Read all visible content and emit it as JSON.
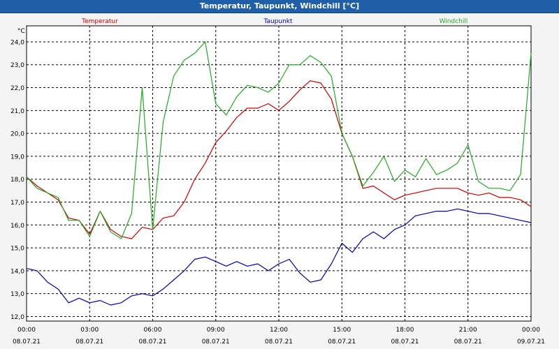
{
  "window": {
    "title": "Temperatur, Taupunkt, Windchill [°C]"
  },
  "chart_data": {
    "type": "line",
    "title": "Temperatur, Taupunkt, Windchill [°C]",
    "ylabel": "°C",
    "ylim": [
      11.8,
      24.7
    ],
    "yticks": [
      "12,0",
      "13,0",
      "14,0",
      "15,0",
      "16,0",
      "17,0",
      "18,0",
      "19,0",
      "20,0",
      "21,0",
      "22,0",
      "23,0",
      "24,0"
    ],
    "xticks": [
      {
        "time": "00:00",
        "date": "08.07.21"
      },
      {
        "time": "03:00",
        "date": "08.07.21"
      },
      {
        "time": "06:00",
        "date": "08.07.21"
      },
      {
        "time": "09:00",
        "date": "08.07.21"
      },
      {
        "time": "12:00",
        "date": "08.07.21"
      },
      {
        "time": "15:00",
        "date": "08.07.21"
      },
      {
        "time": "18:00",
        "date": "08.07.21"
      },
      {
        "time": "21:00",
        "date": "08.07.21"
      },
      {
        "time": "00:00",
        "date": "09.07.21"
      }
    ],
    "grid": true,
    "colors": {
      "Temperatur": "#cc0000",
      "Taupunkt": "#0000aa",
      "Windchill": "#22aa22"
    },
    "series": [
      {
        "name": "Temperatur",
        "x": [
          0,
          0.5,
          1,
          1.5,
          2,
          2.5,
          3,
          3.5,
          4,
          4.5,
          5,
          5.5,
          6,
          6.5,
          7,
          7.5,
          8,
          8.5,
          9,
          9.5,
          10,
          10.5,
          11,
          11.5,
          12,
          12.5,
          13,
          13.5,
          14,
          14.5,
          15,
          15.5,
          16,
          16.5,
          17,
          17.5,
          18,
          18.5,
          19,
          19.5,
          20,
          20.5,
          21,
          21.5,
          22,
          22.5,
          23,
          23.5,
          24
        ],
        "values": [
          18.1,
          17.7,
          17.4,
          17.1,
          16.3,
          16.2,
          15.6,
          16.6,
          15.8,
          15.5,
          15.4,
          15.9,
          15.8,
          16.3,
          16.4,
          17.0,
          18.0,
          18.7,
          19.6,
          20.1,
          20.7,
          21.1,
          21.1,
          21.3,
          21.0,
          21.4,
          21.9,
          22.3,
          22.2,
          21.5,
          20.0,
          19.0,
          17.6,
          17.7,
          17.4,
          17.1,
          17.3,
          17.4,
          17.5,
          17.6,
          17.6,
          17.6,
          17.4,
          17.3,
          17.4,
          17.2,
          17.2,
          17.1,
          16.8
        ]
      },
      {
        "name": "Taupunkt",
        "x": [
          0,
          0.5,
          1,
          1.5,
          2,
          2.5,
          3,
          3.5,
          4,
          4.5,
          5,
          5.5,
          6,
          6.5,
          7,
          7.5,
          8,
          8.5,
          9,
          9.5,
          10,
          10.5,
          11,
          11.5,
          12,
          12.5,
          13,
          13.5,
          14,
          14.5,
          15,
          15.5,
          16,
          16.5,
          17,
          17.5,
          18,
          18.5,
          19,
          19.5,
          20,
          20.5,
          21,
          21.5,
          22,
          22.5,
          23,
          23.5,
          24
        ],
        "values": [
          14.1,
          14.0,
          13.5,
          13.2,
          12.6,
          12.8,
          12.6,
          12.7,
          12.5,
          12.6,
          12.9,
          13.0,
          12.9,
          13.2,
          13.6,
          14.0,
          14.5,
          14.6,
          14.4,
          14.2,
          14.4,
          14.2,
          14.3,
          14.0,
          14.3,
          14.5,
          13.9,
          13.5,
          13.6,
          14.3,
          15.2,
          14.8,
          15.4,
          15.7,
          15.4,
          15.8,
          16.0,
          16.4,
          16.5,
          16.6,
          16.6,
          16.7,
          16.6,
          16.5,
          16.5,
          16.4,
          16.3,
          16.2,
          16.1
        ]
      },
      {
        "name": "Windchill",
        "x": [
          0,
          0.5,
          1,
          1.5,
          2,
          2.5,
          3,
          3.5,
          4,
          4.5,
          5,
          5.5,
          6,
          6.5,
          7,
          7.5,
          8,
          8.5,
          9,
          9.5,
          10,
          10.5,
          11,
          11.5,
          12,
          12.5,
          13,
          13.5,
          14,
          14.5,
          15,
          15.5,
          16,
          16.5,
          17,
          17.5,
          18,
          18.5,
          19,
          19.5,
          20,
          20.5,
          21,
          21.5,
          22,
          22.5,
          23,
          23.5,
          24
        ],
        "values": [
          18.1,
          17.6,
          17.4,
          17.2,
          16.2,
          16.2,
          15.5,
          16.6,
          15.7,
          15.4,
          16.5,
          22.0,
          15.8,
          20.5,
          22.5,
          23.2,
          23.5,
          24.0,
          21.3,
          20.8,
          21.6,
          22.1,
          22.0,
          21.8,
          22.2,
          23.0,
          23.0,
          23.4,
          23.1,
          22.5,
          20.0,
          19.0,
          17.7,
          18.3,
          19.0,
          17.9,
          18.4,
          18.1,
          18.9,
          18.2,
          18.4,
          18.7,
          19.5,
          17.9,
          17.6,
          17.6,
          17.5,
          18.2,
          23.5
        ]
      }
    ]
  }
}
